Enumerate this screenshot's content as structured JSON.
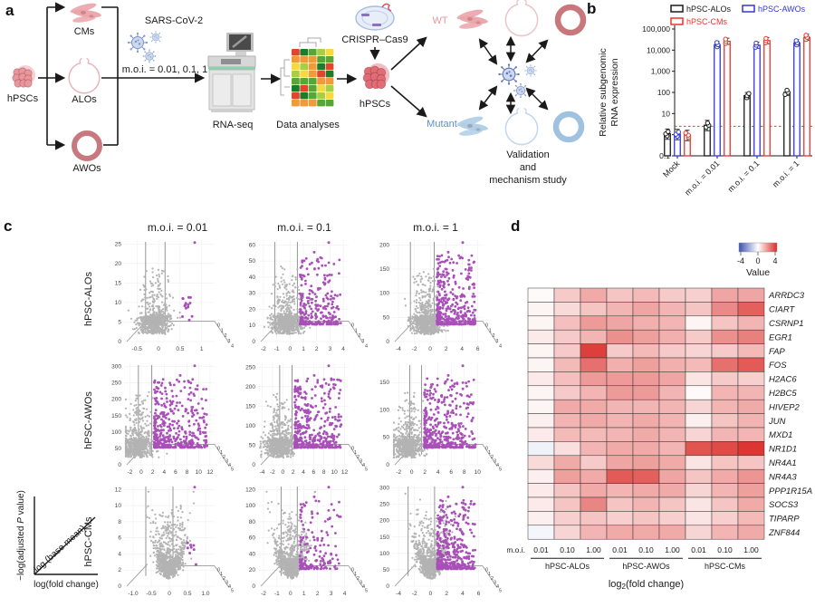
{
  "figure_labels": {
    "a": "a",
    "b": "b",
    "c": "c",
    "d": "d"
  },
  "panel_a": {
    "labels": {
      "hpscs": "hPSCs",
      "cms": "CMs",
      "alos": "ALOs",
      "awos": "AWOs",
      "sars": "SARS-CoV-2",
      "moi": "m.o.i. = 0.01, 0.1, 1",
      "rnaseq": "RNA-seq",
      "data_analyses": "Data analyses",
      "crispr": "CRISPR–Cas9",
      "hpscs2": "hPSCs",
      "wt": "WT",
      "mutant": "Mutant",
      "validation1": "Validation",
      "validation2": "and",
      "validation3": "mechanism study"
    },
    "colors": {
      "pink": "#e8989d",
      "pink_light": "#eec4c7",
      "ring_pink": "#c8797f",
      "blue_cm": "#aecde5",
      "blue_alo": "#c3d8ec",
      "blue_ring": "#9fc2e0",
      "virus": "#7e95c8",
      "wt_text": "#e2989d",
      "mutant_text": "#5f8fc7"
    }
  },
  "chart_data": [
    {
      "panel": "b",
      "type": "bar",
      "log_scale": true,
      "categories": [
        "Mock",
        "m.o.i. = 0.01",
        "m.o.i. = 0.1",
        "m.o.i. = 1"
      ],
      "series": [
        {
          "name": "hPSC-ALOs",
          "color": "#1a1a1a",
          "values": [
            1.1,
            2.8,
            70,
            100
          ]
        },
        {
          "name": "hPSC-AWOs",
          "color": "#3438cf",
          "values": [
            1.05,
            18000,
            17000,
            22000
          ]
        },
        {
          "name": "hPSC-CMs",
          "color": "#e8352e",
          "values": [
            0.95,
            26000,
            28000,
            40000
          ]
        }
      ],
      "ylabel_lines": [
        "Relative subgenomic",
        "RNA expression"
      ],
      "yticks": {
        "values": [
          0.1,
          1,
          10,
          100,
          1000,
          10000,
          100000
        ],
        "labels": [
          "0.1",
          "1",
          "10",
          "100",
          "1,000",
          "10,000",
          "100,000"
        ]
      },
      "threshold": {
        "value": 2.5,
        "color": "#e8352e"
      }
    },
    {
      "panel": "c",
      "type": "scatter",
      "variant": "3d-volcano",
      "col_titles": [
        "m.o.i. = 0.01",
        "m.o.i. = 0.1",
        "m.o.i. = 1"
      ],
      "row_labels": [
        "hPSC-ALOs",
        "hPSC-AWOs",
        "hPSC-CMs"
      ],
      "point_colors": {
        "nonsig": "#b3b3b3",
        "sig": "#a94fb8"
      },
      "axis_legend": {
        "y_pre": "−log(adjusted ",
        "y_italic": "P",
        "y_post": " value)",
        "diag": "log (base mean)",
        "x": "log(fold change)"
      },
      "subplots": [
        [
          {
            "ymax": 26,
            "yticks": [
              0,
              5,
              10,
              15,
              20,
              25
            ],
            "xmin": -0.8,
            "xmax": 1.3,
            "xticks": [
              -0.5,
              0,
              0.5,
              1
            ],
            "xtick_labels": [
              "-0.5",
              "0",
              "0.5",
              "1"
            ],
            "zmax": 4,
            "vlines": [
              -0.3,
              0.15
            ],
            "n_nonsig": 700,
            "n_sig": 14,
            "shape": "skew"
          },
          {
            "ymax": 63,
            "yticks": [
              0,
              10,
              20,
              30,
              40,
              50,
              60
            ],
            "xmin": -2.4,
            "xmax": 4.4,
            "xticks": [
              -2,
              -1,
              0,
              1,
              2,
              3,
              4
            ],
            "xtick_labels": [
              "-2",
              "-1",
              "0",
              "1",
              "2",
              "3",
              "4"
            ],
            "zmax": 4,
            "vlines": [
              -1.15,
              0.55
            ],
            "n_nonsig": 800,
            "n_sig": 260,
            "shape": "skew"
          },
          {
            "ymax": 210,
            "yticks": [
              0,
              50,
              100,
              150,
              200
            ],
            "xmin": -4.8,
            "xmax": 6.6,
            "xticks": [
              -4,
              -2,
              0,
              2,
              4,
              6
            ],
            "xtick_labels": [
              "-4",
              "-2",
              "0",
              "2",
              "4",
              "6"
            ],
            "zmax": 4,
            "vlines": [
              -2.5,
              0.5
            ],
            "n_nonsig": 800,
            "n_sig": 380,
            "shape": "skew"
          }
        ],
        [
          {
            "ymax": 310,
            "yticks": [
              0,
              50,
              100,
              150,
              200,
              250,
              300
            ],
            "xmin": -3,
            "xmax": 12.8,
            "xticks": [
              -2,
              0,
              2,
              4,
              6,
              8,
              10,
              12
            ],
            "xtick_labels": [
              "-2",
              "0",
              "2",
              "4",
              "6",
              "8",
              "10",
              "12"
            ],
            "zmax": 5,
            "vlines": [
              -0.5,
              1.8
            ],
            "n_nonsig": 700,
            "n_sig": 420,
            "shape": "skew"
          },
          {
            "ymax": 260,
            "yticks": [
              0,
              50,
              100,
              150,
              200,
              250
            ],
            "xmin": -4.8,
            "xmax": 12.8,
            "xticks": [
              -4,
              -2,
              0,
              2,
              4,
              6,
              8,
              10,
              12
            ],
            "xtick_labels": [
              "-4",
              "-2",
              "0",
              "2",
              "4",
              "6",
              "8",
              "10",
              "12"
            ],
            "zmax": 5,
            "vlines": [
              -0.6,
              1.8
            ],
            "n_nonsig": 700,
            "n_sig": 420,
            "shape": "skew"
          },
          {
            "ymax": 185,
            "yticks": [
              0,
              50,
              100,
              150
            ],
            "xmin": -3,
            "xmax": 10.8,
            "xticks": [
              -2,
              0,
              2,
              4,
              6,
              8,
              10
            ],
            "xtick_labels": [
              "-2",
              "0",
              "2",
              "4",
              "6",
              "8",
              "10"
            ],
            "zmax": 5,
            "vlines": [
              -0.3,
              1.5
            ],
            "n_nonsig": 700,
            "n_sig": 420,
            "shape": "skew"
          }
        ],
        [
          {
            "ymax": 12.6,
            "yticks": [
              0,
              2,
              4,
              6,
              8,
              10,
              12
            ],
            "xmin": -1.25,
            "xmax": 1.25,
            "xticks": [
              -1.0,
              -0.5,
              0,
              0.5,
              1.0
            ],
            "xtick_labels": [
              "-1.0",
              "-0.5",
              "0",
              "0.5",
              "1.0"
            ],
            "zmax": 5,
            "vlines": [
              -0.65,
              0.1
            ],
            "n_nonsig": 900,
            "n_sig": 8,
            "shape": "v"
          },
          {
            "ymax": 126,
            "yticks": [
              0,
              20,
              40,
              60,
              80,
              100,
              120
            ],
            "xmin": -2.4,
            "xmax": 4.3,
            "xticks": [
              -2,
              -1,
              0,
              1,
              2,
              3,
              4
            ],
            "xtick_labels": [
              "-2",
              "-1",
              "0",
              "1",
              "2",
              "3",
              "4"
            ],
            "zmax": 5,
            "vlines": [
              -0.7,
              0.5
            ],
            "n_nonsig": 900,
            "n_sig": 160,
            "shape": "v"
          },
          {
            "ymax": 310,
            "yticks": [
              0,
              50,
              100,
              150,
              200,
              250,
              300
            ],
            "xmin": -4.8,
            "xmax": 6.5,
            "xticks": [
              -4,
              -2,
              0,
              2,
              4,
              6
            ],
            "xtick_labels": [
              "-4",
              "-2",
              "0",
              "2",
              "4",
              "6"
            ],
            "zmax": 5,
            "vlines": [
              -2.8,
              0.5
            ],
            "n_nonsig": 900,
            "n_sig": 380,
            "shape": "v"
          }
        ]
      ]
    },
    {
      "panel": "d",
      "type": "heatmap",
      "genes": [
        "ARRDC3",
        "CIART",
        "CSRNP1",
        "EGR1",
        "FAP",
        "FOS",
        "H2AC6",
        "H2BC5",
        "HIVEP2",
        "JUN",
        "MXD1",
        "NR1D1",
        "NR4A1",
        "NR4A3",
        "PPP1R15A",
        "SOCS3",
        "TIPARP",
        "ZNF844"
      ],
      "moi_row_label": "m.o.i.",
      "col_moi": [
        "0.01",
        "0.10",
        "1.00",
        "0.01",
        "0.10",
        "1.00",
        "0.01",
        "0.10",
        "1.00"
      ],
      "groups": [
        "hPSC-ALOs",
        "hPSC-AWOs",
        "hPSC-CMs"
      ],
      "xlabel": {
        "pre": "log",
        "sub": "2",
        "post": "(fold change)"
      },
      "legend": {
        "ticks": [
          "-4",
          "0",
          "4"
        ],
        "label": "Value",
        "min": -4,
        "max": 4,
        "neg_color": "#3a4fb0",
        "pos_color": "#d92b26"
      },
      "values": [
        [
          0.1,
          1.0,
          1.6,
          1.1,
          1.3,
          1.0,
          0.9,
          1.7,
          1.7
        ],
        [
          0.2,
          0.7,
          1.1,
          1.4,
          1.7,
          1.4,
          1.1,
          2.2,
          3.0
        ],
        [
          0.2,
          1.2,
          1.9,
          1.7,
          1.5,
          1.4,
          0.2,
          1.1,
          1.4
        ],
        [
          0.4,
          1.0,
          1.4,
          2.1,
          1.8,
          1.5,
          1.0,
          2.1,
          2.4
        ],
        [
          0.2,
          1.0,
          3.6,
          1.0,
          1.3,
          1.0,
          0.8,
          1.0,
          1.3
        ],
        [
          0.2,
          1.3,
          2.7,
          1.5,
          1.8,
          1.5,
          1.3,
          2.7,
          3.1
        ],
        [
          0.4,
          1.2,
          1.9,
          1.9,
          1.9,
          1.7,
          0.5,
          1.0,
          0.9
        ],
        [
          0.2,
          1.0,
          1.4,
          1.9,
          1.9,
          1.4,
          0.1,
          1.4,
          1.4
        ],
        [
          0.2,
          1.6,
          1.6,
          1.4,
          1.4,
          1.4,
          0.8,
          1.4,
          1.6
        ],
        [
          0.3,
          1.4,
          1.6,
          1.4,
          1.6,
          1.4,
          0.3,
          1.1,
          1.4
        ],
        [
          0.4,
          1.3,
          1.3,
          1.4,
          1.6,
          1.4,
          0.8,
          1.4,
          1.4
        ],
        [
          -0.3,
          0.6,
          1.4,
          1.6,
          1.6,
          1.4,
          3.2,
          3.4,
          3.8
        ],
        [
          0.7,
          1.6,
          1.0,
          1.7,
          1.8,
          1.6,
          0.5,
          1.1,
          1.1
        ],
        [
          0.3,
          1.8,
          1.6,
          3.1,
          3.0,
          1.7,
          1.1,
          1.6,
          2.0
        ],
        [
          0.4,
          1.1,
          1.6,
          1.4,
          1.6,
          1.6,
          0.8,
          1.4,
          1.8
        ],
        [
          0.4,
          1.1,
          2.3,
          1.1,
          1.4,
          1.1,
          0.5,
          1.1,
          1.6
        ],
        [
          0.3,
          0.9,
          1.1,
          0.9,
          1.1,
          0.9,
          0.5,
          0.9,
          1.3
        ],
        [
          -0.2,
          0.8,
          1.4,
          1.6,
          1.6,
          1.6,
          0.8,
          1.4,
          1.6
        ]
      ]
    }
  ]
}
